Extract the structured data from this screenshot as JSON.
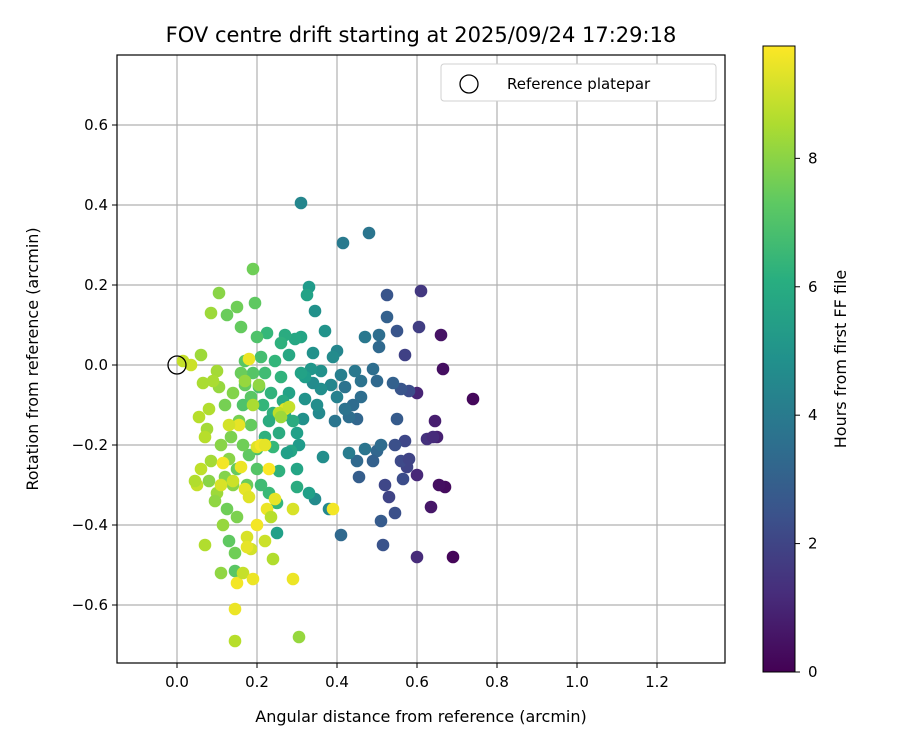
{
  "chart_data": {
    "type": "scatter",
    "title": "FOV centre drift starting at 2025/09/24 17:29:18",
    "xlabel": "Angular distance from reference (arcmin)",
    "ylabel": "Rotation from reference (arcmin)",
    "xlim": [
      -0.15,
      1.37
    ],
    "ylim": [
      -0.745,
      0.775
    ],
    "xticks": [
      0.0,
      0.2,
      0.4,
      0.6,
      0.8,
      1.0,
      1.2
    ],
    "xtick_labels": [
      "0.0",
      "0.2",
      "0.4",
      "0.6",
      "0.8",
      "1.0",
      "1.2"
    ],
    "yticks": [
      0.6,
      0.4,
      0.2,
      0.0,
      -0.2,
      -0.4,
      -0.6
    ],
    "ytick_labels": [
      "0.6",
      "0.4",
      "0.2",
      "0.0",
      "−0.2",
      "−0.4",
      "−0.6"
    ],
    "grid": true,
    "legend": {
      "position": "top-right",
      "entries": [
        "Reference platepar"
      ]
    },
    "reference_point": {
      "x": 0.0,
      "y": 0.0,
      "label": "Reference platepar"
    },
    "colorbar": {
      "label": "Hours from first FF file",
      "colormap": "viridis",
      "range": [
        0,
        9.75
      ],
      "ticks": [
        0,
        2,
        4,
        6,
        8
      ],
      "tick_labels": [
        "0",
        "2",
        "4",
        "6",
        "8"
      ]
    },
    "points": [
      [
        0.74,
        -0.085,
        0.2
      ],
      [
        0.69,
        -0.48,
        0.15
      ],
      [
        0.67,
        -0.305,
        0.3
      ],
      [
        0.655,
        -0.3,
        0.4
      ],
      [
        0.66,
        0.075,
        0.5
      ],
      [
        0.665,
        -0.01,
        0.4
      ],
      [
        0.635,
        -0.355,
        0.6
      ],
      [
        0.645,
        -0.14,
        0.8
      ],
      [
        0.65,
        -0.18,
        0.9
      ],
      [
        0.6,
        -0.07,
        1.0
      ],
      [
        0.6,
        -0.48,
        1.2
      ],
      [
        0.61,
        0.185,
        1.6
      ],
      [
        0.605,
        0.095,
        1.8
      ],
      [
        0.6,
        -0.275,
        1.1
      ],
      [
        0.625,
        -0.185,
        1.4
      ],
      [
        0.64,
        -0.18,
        1.2
      ],
      [
        0.57,
        0.025,
        1.9
      ],
      [
        0.58,
        -0.065,
        2.3
      ],
      [
        0.56,
        -0.06,
        2.6
      ],
      [
        0.57,
        -0.19,
        2.1
      ],
      [
        0.575,
        -0.255,
        2.0
      ],
      [
        0.545,
        -0.2,
        2.4
      ],
      [
        0.56,
        -0.24,
        2.2
      ],
      [
        0.58,
        -0.235,
        2.0
      ],
      [
        0.565,
        -0.285,
        2.3
      ],
      [
        0.55,
        -0.135,
        2.8
      ],
      [
        0.54,
        -0.045,
        3.0
      ],
      [
        0.55,
        0.085,
        2.6
      ],
      [
        0.525,
        0.175,
        2.6
      ],
      [
        0.525,
        0.12,
        3.0
      ],
      [
        0.52,
        -0.3,
        2.1
      ],
      [
        0.53,
        -0.33,
        2.0
      ],
      [
        0.545,
        -0.37,
        2.4
      ],
      [
        0.51,
        -0.39,
        2.8
      ],
      [
        0.515,
        -0.45,
        2.5
      ],
      [
        0.5,
        -0.215,
        3.2
      ],
      [
        0.49,
        -0.24,
        3.0
      ],
      [
        0.51,
        -0.2,
        3.4
      ],
      [
        0.505,
        0.045,
        3.3
      ],
      [
        0.505,
        0.075,
        3.5
      ],
      [
        0.5,
        -0.04,
        3.3
      ],
      [
        0.49,
        -0.01,
        3.5
      ],
      [
        0.48,
        0.33,
        3.8
      ],
      [
        0.47,
        0.07,
        3.9
      ],
      [
        0.47,
        -0.21,
        3.8
      ],
      [
        0.46,
        -0.08,
        3.5
      ],
      [
        0.46,
        -0.04,
        3.7
      ],
      [
        0.455,
        -0.28,
        2.9
      ],
      [
        0.45,
        -0.24,
        3.3
      ],
      [
        0.45,
        -0.135,
        3.2
      ],
      [
        0.445,
        -0.015,
        3.9
      ],
      [
        0.44,
        -0.1,
        3.4
      ],
      [
        0.43,
        -0.22,
        4.1
      ],
      [
        0.43,
        -0.13,
        3.5
      ],
      [
        0.42,
        -0.055,
        3.7
      ],
      [
        0.42,
        -0.11,
        3.7
      ],
      [
        0.415,
        0.305,
        4.0
      ],
      [
        0.41,
        -0.425,
        3.3
      ],
      [
        0.41,
        -0.025,
        4.2
      ],
      [
        0.4,
        -0.08,
        4.3
      ],
      [
        0.4,
        0.035,
        4.5
      ],
      [
        0.395,
        -0.14,
        3.8
      ],
      [
        0.39,
        0.02,
        4.7
      ],
      [
        0.385,
        -0.05,
        4.5
      ],
      [
        0.38,
        -0.36,
        4.6
      ],
      [
        0.37,
        0.085,
        5.0
      ],
      [
        0.365,
        -0.23,
        4.8
      ],
      [
        0.36,
        -0.015,
        4.9
      ],
      [
        0.36,
        -0.06,
        4.8
      ],
      [
        0.355,
        -0.12,
        4.6
      ],
      [
        0.35,
        -0.1,
        4.8
      ],
      [
        0.345,
        -0.335,
        4.7
      ],
      [
        0.345,
        0.135,
        4.9
      ],
      [
        0.34,
        -0.045,
        4.7
      ],
      [
        0.34,
        0.03,
        4.9
      ],
      [
        0.335,
        -0.01,
        5.1
      ],
      [
        0.33,
        0.195,
        5.3
      ],
      [
        0.33,
        -0.32,
        5.5
      ],
      [
        0.325,
        0.175,
        5.6
      ],
      [
        0.32,
        -0.03,
        5.4
      ],
      [
        0.32,
        -0.085,
        5.0
      ],
      [
        0.315,
        -0.135,
        4.9
      ],
      [
        0.31,
        0.405,
        4.5
      ],
      [
        0.31,
        0.07,
        5.7
      ],
      [
        0.31,
        -0.02,
        5.6
      ],
      [
        0.305,
        -0.2,
        5.3
      ],
      [
        0.3,
        -0.17,
        5.5
      ],
      [
        0.3,
        -0.26,
        5.7
      ],
      [
        0.3,
        -0.305,
        6.0
      ],
      [
        0.295,
        0.065,
        5.8
      ],
      [
        0.29,
        -0.14,
        6.0
      ],
      [
        0.285,
        -0.215,
        5.7
      ],
      [
        0.28,
        0.025,
        5.8
      ],
      [
        0.28,
        -0.07,
        5.6
      ],
      [
        0.275,
        -0.22,
        5.5
      ],
      [
        0.27,
        0.075,
        6.0
      ],
      [
        0.27,
        -0.125,
        6.0
      ],
      [
        0.265,
        -0.09,
        5.9
      ],
      [
        0.26,
        0.055,
        6.2
      ],
      [
        0.26,
        -0.03,
        6.3
      ],
      [
        0.255,
        -0.17,
        6.0
      ],
      [
        0.255,
        -0.265,
        6.2
      ],
      [
        0.25,
        -0.345,
        6.4
      ],
      [
        0.25,
        -0.42,
        5.5
      ],
      [
        0.245,
        0.01,
        6.4
      ],
      [
        0.24,
        -0.12,
        6.2
      ],
      [
        0.24,
        -0.205,
        6.5
      ],
      [
        0.235,
        -0.07,
        6.3
      ],
      [
        0.23,
        -0.14,
        6.0
      ],
      [
        0.23,
        -0.32,
        6.6
      ],
      [
        0.225,
        0.08,
        6.5
      ],
      [
        0.22,
        -0.02,
        6.7
      ],
      [
        0.22,
        -0.18,
        6.2
      ],
      [
        0.215,
        -0.1,
        6.4
      ],
      [
        0.21,
        0.02,
        6.8
      ],
      [
        0.21,
        -0.3,
        6.7
      ],
      [
        0.205,
        -0.055,
        6.9
      ],
      [
        0.2,
        0.07,
        7.0
      ],
      [
        0.2,
        -0.21,
        6.9
      ],
      [
        0.2,
        -0.26,
        7.1
      ],
      [
        0.195,
        0.155,
        7.3
      ],
      [
        0.19,
        -0.02,
        7.1
      ],
      [
        0.19,
        0.24,
        7.6
      ],
      [
        0.185,
        -0.08,
        7.2
      ],
      [
        0.185,
        -0.15,
        7.4
      ],
      [
        0.18,
        -0.225,
        7.3
      ],
      [
        0.175,
        -0.3,
        7.5
      ],
      [
        0.17,
        0.01,
        7.2
      ],
      [
        0.17,
        -0.05,
        7.4
      ],
      [
        0.165,
        -0.1,
        7.0
      ],
      [
        0.165,
        -0.2,
        7.6
      ],
      [
        0.16,
        0.095,
        7.4
      ],
      [
        0.16,
        -0.02,
        7.5
      ],
      [
        0.155,
        -0.14,
        7.7
      ],
      [
        0.15,
        0.145,
        7.6
      ],
      [
        0.15,
        -0.26,
        7.4
      ],
      [
        0.15,
        -0.38,
        7.8
      ],
      [
        0.145,
        -0.515,
        7.2
      ],
      [
        0.145,
        -0.47,
        7.6
      ],
      [
        0.14,
        -0.07,
        7.9
      ],
      [
        0.14,
        -0.3,
        8.0
      ],
      [
        0.135,
        -0.18,
        7.8
      ],
      [
        0.13,
        -0.235,
        8.0
      ],
      [
        0.13,
        -0.44,
        7.3
      ],
      [
        0.125,
        0.125,
        7.5
      ],
      [
        0.125,
        -0.36,
        7.6
      ],
      [
        0.12,
        -0.1,
        7.7
      ],
      [
        0.12,
        -0.28,
        7.9
      ],
      [
        0.115,
        -0.4,
        8.2
      ],
      [
        0.11,
        -0.2,
        8.0
      ],
      [
        0.11,
        -0.52,
        8.1
      ],
      [
        0.105,
        0.18,
        8.0
      ],
      [
        0.105,
        -0.055,
        8.2
      ],
      [
        0.1,
        -0.32,
        8.3
      ],
      [
        0.1,
        -0.015,
        8.4
      ],
      [
        0.095,
        -0.34,
        8.1
      ],
      [
        0.09,
        -0.04,
        8.5
      ],
      [
        0.085,
        0.13,
        8.3
      ],
      [
        0.085,
        -0.24,
        8.4
      ],
      [
        0.08,
        -0.29,
        8.0
      ],
      [
        0.08,
        -0.11,
        8.6
      ],
      [
        0.075,
        -0.16,
        8.4
      ],
      [
        0.07,
        -0.45,
        8.6
      ],
      [
        0.07,
        -0.18,
        8.7
      ],
      [
        0.065,
        -0.045,
        8.5
      ],
      [
        0.06,
        0.025,
        8.3
      ],
      [
        0.06,
        -0.26,
        8.8
      ],
      [
        0.055,
        -0.13,
        8.7
      ],
      [
        0.05,
        -0.3,
        8.9
      ],
      [
        0.045,
        -0.29,
        8.6
      ],
      [
        0.035,
        0.0,
        9.0
      ],
      [
        0.015,
        0.01,
        8.9
      ],
      [
        0.18,
        0.015,
        9.5
      ],
      [
        0.155,
        -0.15,
        9.4
      ],
      [
        0.145,
        -0.61,
        9.5
      ],
      [
        0.145,
        -0.69,
        8.7
      ],
      [
        0.15,
        -0.545,
        9.6
      ],
      [
        0.16,
        -0.255,
        9.5
      ],
      [
        0.165,
        -0.52,
        8.9
      ],
      [
        0.17,
        -0.31,
        9.4
      ],
      [
        0.175,
        -0.43,
        9.2
      ],
      [
        0.18,
        -0.33,
        9.3
      ],
      [
        0.19,
        -0.535,
        9.5
      ],
      [
        0.2,
        -0.4,
        9.6
      ],
      [
        0.2,
        -0.205,
        9.3
      ],
      [
        0.21,
        -0.2,
        9.6
      ],
      [
        0.22,
        -0.2,
        9.4
      ],
      [
        0.225,
        -0.36,
        9.5
      ],
      [
        0.23,
        -0.26,
        9.7
      ],
      [
        0.245,
        -0.335,
        9.4
      ],
      [
        0.24,
        -0.485,
        8.6
      ],
      [
        0.27,
        -0.11,
        9.3
      ],
      [
        0.29,
        -0.535,
        9.5
      ],
      [
        0.29,
        -0.36,
        9.2
      ],
      [
        0.305,
        -0.68,
        8.2
      ],
      [
        0.39,
        -0.36,
        9.6
      ],
      [
        0.185,
        -0.46,
        9.1
      ],
      [
        0.115,
        -0.245,
        9.6
      ],
      [
        0.175,
        -0.455,
        9.4
      ],
      [
        0.22,
        -0.44,
        9.0
      ],
      [
        0.13,
        -0.15,
        9.1
      ],
      [
        0.14,
        -0.29,
        9.0
      ],
      [
        0.255,
        -0.12,
        8.8
      ],
      [
        0.205,
        -0.05,
        8.1
      ],
      [
        0.235,
        -0.38,
        8.7
      ],
      [
        0.26,
        -0.13,
        8.3
      ],
      [
        0.19,
        -0.1,
        8.5
      ],
      [
        0.11,
        -0.3,
        9.2
      ],
      [
        0.17,
        -0.04,
        8.2
      ],
      [
        0.28,
        -0.105,
        8.9
      ]
    ]
  }
}
